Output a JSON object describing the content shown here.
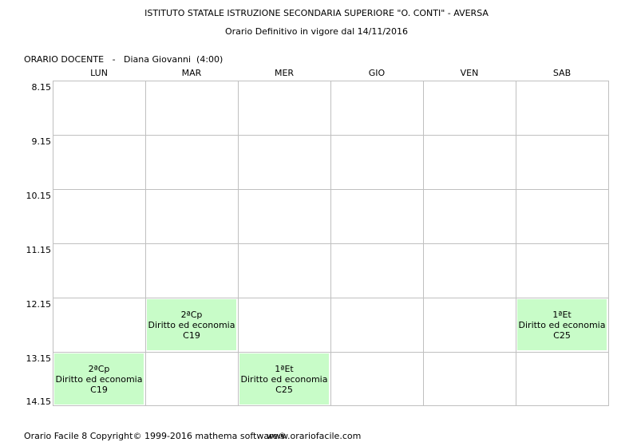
{
  "header": {
    "school": "ISTITUTO STATALE ISTRUZIONE SECONDARIA SUPERIORE \"O. CONTI\" - AVERSA",
    "subtitle": "Orario Definitivo in vigore dal 14/11/2016"
  },
  "teacher_label": "ORARIO DOCENTE   -   Diana Giovanni  (4:00)",
  "days": [
    "LUN",
    "MAR",
    "MER",
    "GIO",
    "VEN",
    "SAB"
  ],
  "times": [
    "8.15",
    "9.15",
    "10.15",
    "11.15",
    "12.15",
    "13.15",
    "14.15"
  ],
  "lessons": [
    {
      "day": 1,
      "slot": 4,
      "class": "2ªCp",
      "subject": "Diritto ed economia",
      "room": "C19"
    },
    {
      "day": 5,
      "slot": 4,
      "class": "1ªEt",
      "subject": "Diritto ed economia",
      "room": "C25"
    },
    {
      "day": 0,
      "slot": 5,
      "class": "2ªCp",
      "subject": "Diritto ed economia",
      "room": "C19"
    },
    {
      "day": 2,
      "slot": 5,
      "class": "1ªEt",
      "subject": "Diritto ed economia",
      "room": "C25"
    }
  ],
  "colors": {
    "lesson_bg": "#c8fcc8",
    "grid": "#c0c0c0"
  },
  "footer": {
    "copyright": "Orario Facile 8  Copyright© 1999-2016 mathema software®",
    "url": "www.orariofacile.com"
  }
}
